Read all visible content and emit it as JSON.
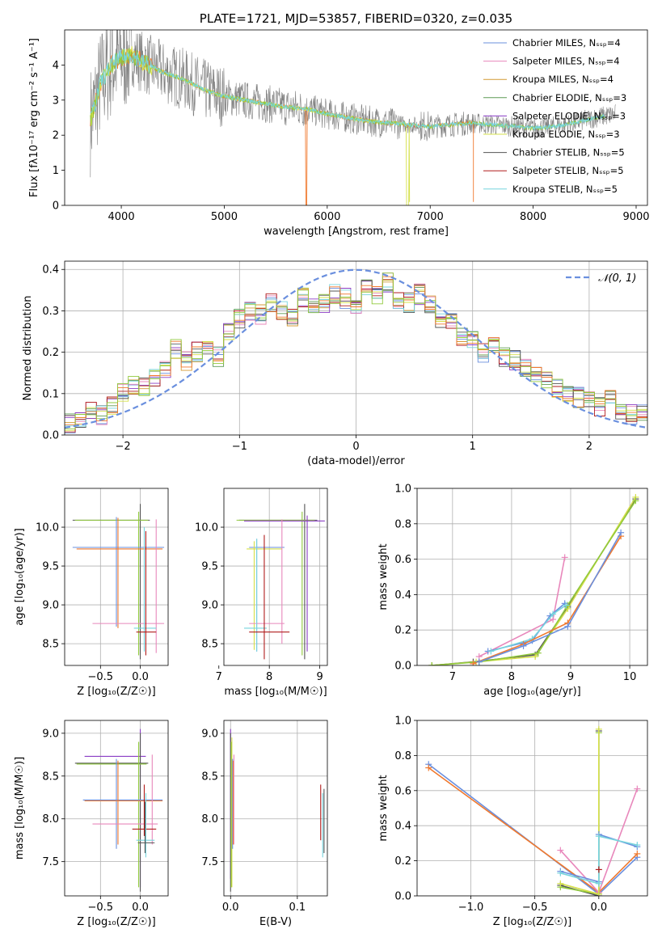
{
  "colors": {
    "series": [
      "#6a8fde",
      "#e887bb",
      "#d49a34",
      "#5f9a55",
      "#8a3cc4",
      "#d5e04a",
      "#555555",
      "#b01c1c",
      "#77d4dd",
      "#f0792e",
      "#91c93c"
    ],
    "observed": "#7f7f7f",
    "gaussian": "#6a8fde",
    "grid": "#b0b0b0"
  },
  "chart_data": [
    {
      "id": "spectrum",
      "type": "line",
      "title": "PLATE=1721, MJD=53857, FIBERID=0320, z=0.035",
      "xlabel": "wavelength [Angstrom, rest frame]",
      "ylabel": "Flux [fλ10⁻¹⁷ erg cm⁻² s⁻¹ A⁻¹]",
      "xlim": [
        3450,
        9110
      ],
      "ylim": [
        0,
        5
      ],
      "xticks": [
        4000,
        5000,
        6000,
        7000,
        8000,
        9000
      ],
      "yticks": [
        0,
        1,
        2,
        3,
        4
      ],
      "grid": false,
      "legend_position": "top-right",
      "legend": [
        "Chabrier MILES, Nₛₛₚ=4",
        "Salpeter MILES, Nₛₛₚ=4",
        "Kroupa MILES, Nₛₛₚ=4",
        "Chabrier ELODIE, Nₛₛₚ=3",
        "Salpeter ELODIE, Nₛₛₚ=3",
        "Kroupa ELODIE, Nₛₛₚ=3",
        "Chabrier STELIB, Nₛₛₚ=5",
        "Salpeter STELIB, Nₛₛₚ=5",
        "Kroupa STELIB, Nₛₛₚ=5"
      ],
      "continuum": {
        "x": [
          3700,
          3800,
          3900,
          4000,
          4100,
          4200,
          4400,
          4600,
          4800,
          5000,
          5200,
          5400,
          5600,
          5800,
          6000,
          6200,
          6400,
          6600,
          6800,
          7000,
          7200,
          7400,
          7600,
          7800,
          8000,
          8200,
          8400,
          8600,
          8800
        ],
        "y": [
          2.4,
          3.5,
          4.0,
          4.2,
          4.3,
          4.1,
          3.8,
          3.6,
          3.3,
          3.1,
          3.0,
          2.9,
          2.8,
          2.75,
          2.6,
          2.5,
          2.4,
          2.35,
          2.3,
          2.25,
          2.3,
          2.35,
          2.3,
          2.25,
          2.2,
          2.25,
          2.35,
          2.5,
          2.6
        ]
      }
    },
    {
      "id": "residuals",
      "type": "line",
      "xlabel": "(data-model)/error",
      "ylabel": "Normed distribution",
      "xlim": [
        -2.5,
        2.5
      ],
      "ylim": [
        0,
        0.42
      ],
      "xticks": [
        -2,
        -1,
        0,
        1,
        2
      ],
      "yticks": [
        0.0,
        0.1,
        0.2,
        0.3,
        0.4
      ],
      "grid": true,
      "legend_position": "top-right",
      "legend": [
        "𝒩(0, 1)"
      ],
      "hist_base": [
        0.03,
        0.04,
        0.06,
        0.05,
        0.07,
        0.1,
        0.12,
        0.12,
        0.14,
        0.16,
        0.21,
        0.18,
        0.2,
        0.22,
        0.19,
        0.25,
        0.28,
        0.3,
        0.29,
        0.32,
        0.3,
        0.28,
        0.33,
        0.31,
        0.32,
        0.34,
        0.33,
        0.31,
        0.35,
        0.34,
        0.37,
        0.33,
        0.32,
        0.34,
        0.32,
        0.28,
        0.27,
        0.24,
        0.23,
        0.2,
        0.22,
        0.19,
        0.18,
        0.16,
        0.15,
        0.13,
        0.11,
        0.1,
        0.09,
        0.08,
        0.07,
        0.09,
        0.06,
        0.05,
        0.05
      ]
    },
    {
      "id": "age-vs-z",
      "type": "scatter",
      "xlabel": "Z [log₁₀(Z/Z☉)]",
      "ylabel": "age  [log₁₀(age/yr)]",
      "xlim": [
        -0.95,
        0.35
      ],
      "ylim": [
        8.22,
        10.5
      ],
      "xticks": [
        -0.5,
        0.0
      ],
      "yticks": [
        8.5,
        9.0,
        9.5,
        10.0
      ],
      "grid": true,
      "crosses": [
        {
          "c": 6,
          "x": 0.0,
          "y": 10.09,
          "x0": -0.85,
          "x1": 0.12,
          "y0": 8.3,
          "y1": 10.3
        },
        {
          "c": 10,
          "x": -0.02,
          "y": 10.09,
          "x0": -0.82,
          "x1": 0.1,
          "y0": 8.35,
          "y1": 10.2
        },
        {
          "c": 0,
          "x": -0.3,
          "y": 9.74,
          "x0": -0.85,
          "x1": 0.3,
          "y0": 8.72,
          "y1": 10.13
        },
        {
          "c": 9,
          "x": -0.28,
          "y": 9.72,
          "x0": -0.8,
          "x1": 0.28,
          "y0": 8.7,
          "y1": 10.12
        },
        {
          "c": 1,
          "x": 0.2,
          "y": 8.76,
          "x0": -0.6,
          "x1": 0.3,
          "y0": 8.38,
          "y1": 10.1
        },
        {
          "c": 8,
          "x": 0.05,
          "y": 8.7,
          "x0": -0.08,
          "x1": 0.2,
          "y0": 8.4,
          "y1": 10.0
        },
        {
          "c": 7,
          "x": 0.07,
          "y": 8.65,
          "x0": -0.05,
          "x1": 0.2,
          "y0": 8.35,
          "y1": 9.95
        }
      ]
    },
    {
      "id": "age-vs-mass",
      "type": "scatter",
      "xlabel": "mass [log₁₀(M/M☉)]",
      "ylabel": "",
      "xlim": [
        7.1,
        9.15
      ],
      "ylim": [
        8.22,
        10.5
      ],
      "xticks": [
        7,
        8,
        9
      ],
      "yticks": [
        8.5,
        9.0,
        9.5,
        10.0
      ],
      "grid": true,
      "crosses": [
        {
          "c": 6,
          "x": 8.7,
          "y": 10.09,
          "x0": 7.4,
          "x1": 8.95,
          "y0": 8.3,
          "y1": 10.3
        },
        {
          "c": 10,
          "x": 8.65,
          "y": 10.09,
          "x0": 7.35,
          "x1": 8.9,
          "y0": 8.35,
          "y1": 10.2
        },
        {
          "c": 4,
          "x": 8.75,
          "y": 10.08,
          "x0": 7.5,
          "x1": 9.1,
          "y0": 8.4,
          "y1": 10.15
        },
        {
          "c": 0,
          "x": 7.75,
          "y": 9.74,
          "x0": 7.6,
          "x1": 8.3,
          "y0": 8.4,
          "y1": 9.85
        },
        {
          "c": 5,
          "x": 7.7,
          "y": 9.72,
          "x0": 7.55,
          "x1": 8.25,
          "y0": 8.42,
          "y1": 9.82
        },
        {
          "c": 1,
          "x": 8.25,
          "y": 8.76,
          "x0": 7.6,
          "x1": 8.3,
          "y0": 8.5,
          "y1": 10.1
        },
        {
          "c": 8,
          "x": 7.75,
          "y": 8.7,
          "x0": 7.5,
          "x1": 7.95,
          "y0": 8.4,
          "y1": 9.85
        },
        {
          "c": 7,
          "x": 7.9,
          "y": 8.65,
          "x0": 7.6,
          "x1": 8.4,
          "y0": 8.3,
          "y1": 9.9
        }
      ]
    },
    {
      "id": "weight-vs-age",
      "type": "line",
      "xlabel": "age  [log₁₀(age/yr)]",
      "ylabel": "mass weight",
      "xlim": [
        6.4,
        10.3
      ],
      "ylim": [
        0,
        1.0
      ],
      "xticks": [
        7,
        8,
        9,
        10
      ],
      "yticks": [
        0.0,
        0.2,
        0.4,
        0.6,
        0.8,
        1.0
      ],
      "grid": true,
      "series": [
        {
          "c": 6,
          "x": [
            6.65,
            7.35,
            8.4,
            8.95,
            10.1
          ],
          "y": [
            0.0,
            0.02,
            0.06,
            0.33,
            0.94
          ]
        },
        {
          "c": 5,
          "x": [
            6.65,
            7.4,
            8.4,
            8.95,
            10.1
          ],
          "y": [
            0.0,
            0.02,
            0.05,
            0.32,
            0.95
          ]
        },
        {
          "c": 10,
          "x": [
            6.65,
            7.45,
            8.45,
            8.95,
            10.1
          ],
          "y": [
            0.0,
            0.02,
            0.07,
            0.34,
            0.93
          ]
        },
        {
          "c": 1,
          "x": [
            7.45,
            8.7,
            8.9
          ],
          "y": [
            0.05,
            0.26,
            0.61
          ]
        },
        {
          "c": 0,
          "x": [
            7.6,
            8.35,
            8.65,
            8.9
          ],
          "y": [
            0.08,
            0.14,
            0.28,
            0.35
          ]
        },
        {
          "c": 8,
          "x": [
            7.65,
            8.35,
            8.7,
            8.92
          ],
          "y": [
            0.08,
            0.15,
            0.29,
            0.34
          ]
        },
        {
          "c": 9,
          "x": [
            7.35,
            8.2,
            8.95,
            9.85
          ],
          "y": [
            0.01,
            0.12,
            0.24,
            0.73
          ]
        },
        {
          "c": 0,
          "x": [
            7.45,
            8.2,
            8.95,
            9.85
          ],
          "y": [
            0.02,
            0.11,
            0.22,
            0.75
          ]
        }
      ]
    },
    {
      "id": "mass-vs-z",
      "type": "scatter",
      "xlabel": "Z [log₁₀(Z/Z☉)]",
      "ylabel": "mass [log₁₀(M/M☉)]",
      "xlim": [
        -0.95,
        0.35
      ],
      "ylim": [
        7.1,
        9.15
      ],
      "xticks": [
        -0.5,
        0.0
      ],
      "yticks": [
        7.5,
        8.0,
        8.5,
        9.0
      ],
      "grid": true,
      "crosses": [
        {
          "c": 4,
          "x": 0.0,
          "y": 8.73,
          "x0": -0.7,
          "x1": 0.07,
          "y0": 7.2,
          "y1": 9.05
        },
        {
          "c": 6,
          "x": 0.0,
          "y": 8.65,
          "x0": -0.82,
          "x1": 0.1,
          "y0": 7.15,
          "y1": 9.0
        },
        {
          "c": 10,
          "x": -0.02,
          "y": 8.64,
          "x0": -0.8,
          "x1": 0.08,
          "y0": 7.2,
          "y1": 8.9
        },
        {
          "c": 0,
          "x": -0.3,
          "y": 8.22,
          "x0": -0.72,
          "x1": 0.28,
          "y0": 7.65,
          "y1": 8.7
        },
        {
          "c": 9,
          "x": -0.28,
          "y": 8.21,
          "x0": -0.7,
          "x1": 0.28,
          "y0": 7.7,
          "y1": 8.68
        },
        {
          "c": 1,
          "x": 0.15,
          "y": 7.94,
          "x0": -0.6,
          "x1": 0.22,
          "y0": 7.7,
          "y1": 8.75
        },
        {
          "c": 7,
          "x": 0.05,
          "y": 7.88,
          "x0": -0.1,
          "x1": 0.2,
          "y0": 7.8,
          "y1": 8.4
        },
        {
          "c": 8,
          "x": 0.07,
          "y": 7.75,
          "x0": -0.05,
          "x1": 0.18,
          "y0": 7.55,
          "y1": 8.3
        },
        {
          "c": 6,
          "x": 0.06,
          "y": 7.72,
          "x0": -0.03,
          "x1": 0.18,
          "y0": 7.6,
          "y1": 8.2
        }
      ]
    },
    {
      "id": "mass-vs-ebv",
      "type": "scatter",
      "xlabel": "E(B-V)",
      "ylabel": "",
      "xlim": [
        -0.01,
        0.145
      ],
      "ylim": [
        7.1,
        9.15
      ],
      "xticks": [
        0.0,
        0.1
      ],
      "yticks": [
        7.5,
        8.0,
        8.5,
        9.0
      ],
      "grid": true,
      "vlines": [
        {
          "c": 4,
          "x": 0.0,
          "y0": 7.3,
          "y1": 9.05
        },
        {
          "c": 6,
          "x": 0.0,
          "y0": 7.15,
          "y1": 9.0
        },
        {
          "c": 10,
          "x": 0.001,
          "y0": 7.2,
          "y1": 8.9
        },
        {
          "c": 5,
          "x": 0.002,
          "y0": 7.2,
          "y1": 8.95
        },
        {
          "c": 0,
          "x": 0.003,
          "y0": 7.65,
          "y1": 8.7
        },
        {
          "c": 9,
          "x": 0.004,
          "y0": 7.7,
          "y1": 8.68
        },
        {
          "c": 1,
          "x": 0.005,
          "y0": 7.7,
          "y1": 8.75
        },
        {
          "c": 7,
          "x": 0.135,
          "y0": 7.75,
          "y1": 8.4
        },
        {
          "c": 8,
          "x": 0.138,
          "y0": 7.55,
          "y1": 8.3
        },
        {
          "c": 6,
          "x": 0.14,
          "y0": 7.6,
          "y1": 8.35
        }
      ]
    },
    {
      "id": "weight-vs-z",
      "type": "line",
      "xlabel": "Z [log₁₀(Z/Z☉)]",
      "ylabel": "mass weight",
      "xlim": [
        -1.42,
        0.38
      ],
      "ylim": [
        0,
        1.0
      ],
      "xticks": [
        -1.0,
        -0.5,
        0.0
      ],
      "yticks": [
        0.0,
        0.2,
        0.4,
        0.6,
        0.8,
        1.0
      ],
      "grid": true,
      "series": [
        {
          "c": 0,
          "x": [
            -1.33,
            0.0,
            0.3
          ],
          "y": [
            0.75,
            0.01,
            0.22
          ]
        },
        {
          "c": 9,
          "x": [
            -1.33,
            0.0,
            0.3
          ],
          "y": [
            0.73,
            0.02,
            0.24
          ]
        },
        {
          "c": 1,
          "x": [
            -0.3,
            0.0,
            0.3
          ],
          "y": [
            0.26,
            0.02,
            0.61
          ]
        },
        {
          "c": 6,
          "x": [
            -0.3,
            0.0,
            0.0
          ],
          "y": [
            0.06,
            0.0,
            0.94
          ]
        },
        {
          "c": 10,
          "x": [
            -0.3,
            0.0,
            0.0
          ],
          "y": [
            0.05,
            0.01,
            0.93
          ]
        },
        {
          "c": 5,
          "x": [
            -0.3,
            0.0,
            0.0
          ],
          "y": [
            0.07,
            0.01,
            0.95
          ]
        },
        {
          "c": 0,
          "x": [
            -0.3,
            0.0,
            0.0,
            0.3
          ],
          "y": [
            0.14,
            0.08,
            0.35,
            0.28
          ]
        },
        {
          "c": 8,
          "x": [
            -0.3,
            0.0,
            0.0,
            0.3
          ],
          "y": [
            0.13,
            0.07,
            0.34,
            0.29
          ]
        },
        {
          "c": 7,
          "x": [
            0.0
          ],
          "y": [
            0.15
          ]
        }
      ]
    }
  ]
}
